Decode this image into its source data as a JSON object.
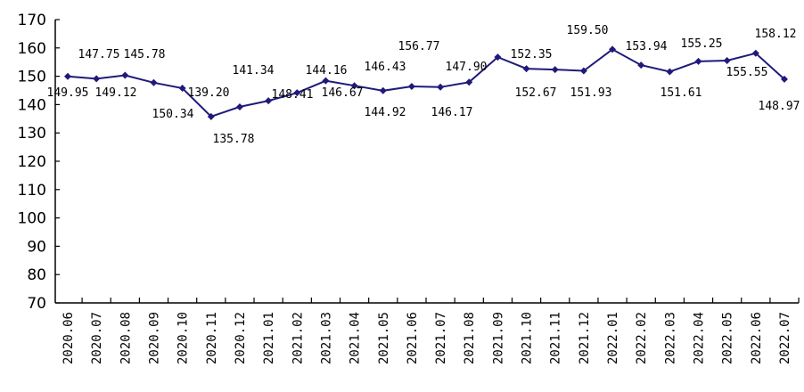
{
  "chart_data": {
    "type": "line",
    "title": "",
    "xlabel": "",
    "ylabel": "",
    "ylim": [
      70,
      170
    ],
    "yticks": [
      70,
      80,
      90,
      100,
      110,
      120,
      130,
      140,
      150,
      160,
      170
    ],
    "grid": false,
    "legend": "none",
    "colors": {
      "line": "#1f1a7a",
      "axis": "#000000"
    },
    "categories": [
      "2020.06",
      "2020.07",
      "2020.08",
      "2020.09",
      "2020.10",
      "2020.11",
      "2020.12",
      "2021.01",
      "2021.02",
      "2021.03",
      "2021.04",
      "2021.05",
      "2021.06",
      "2021.07",
      "2021.08",
      "2021.09",
      "2021.10",
      "2021.11",
      "2021.12",
      "2022.01",
      "2022.02",
      "2022.03",
      "2022.04",
      "2022.05",
      "2022.06",
      "2022.07"
    ],
    "series": [
      {
        "values": [
          149.95,
          149.12,
          150.34,
          147.75,
          145.78,
          135.78,
          139.2,
          141.34,
          144.16,
          148.41,
          146.67,
          144.92,
          146.43,
          146.17,
          147.9,
          156.77,
          152.67,
          152.35,
          151.93,
          159.5,
          153.94,
          151.61,
          155.25,
          155.55,
          158.12,
          148.97
        ],
        "labels": [
          "149.95",
          "149.12",
          "150.34",
          "147.75",
          "145.78",
          "135.78",
          "139.20",
          "141.34",
          "144.16",
          "148.41",
          "146.67",
          "144.92",
          "146.43",
          "146.17",
          "147.90",
          "156.77",
          "152.67",
          "152.35",
          "151.93",
          "159.50",
          "153.94",
          "151.61",
          "155.25",
          "155.55",
          "158.12",
          "148.97"
        ]
      }
    ]
  }
}
